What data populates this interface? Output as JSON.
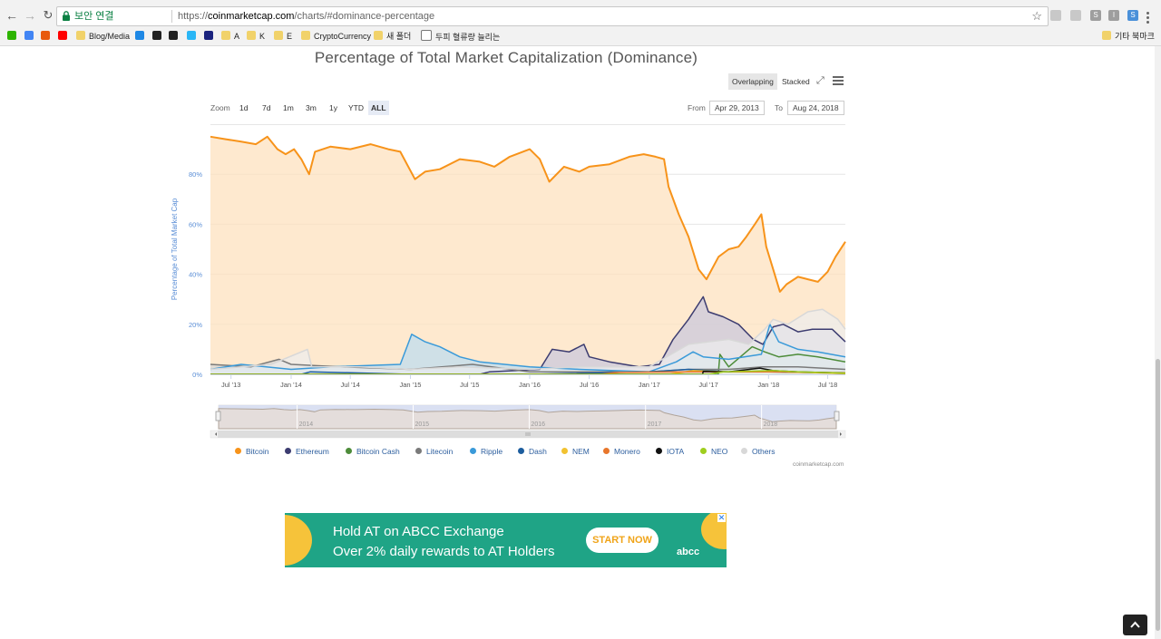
{
  "browser": {
    "secure_label": "보안 연결",
    "url_scheme": "https://",
    "url_host": "coinmarketcap.com",
    "url_path": "/charts/#dominance-percentage",
    "bookmarks": [
      {
        "label": "",
        "icon": "green-n-icon",
        "color": "#2db400"
      },
      {
        "label": "",
        "icon": "google-icon",
        "color": "#4285f4"
      },
      {
        "label": "",
        "icon": "orange-t-icon",
        "color": "#e8590c"
      },
      {
        "label": "",
        "icon": "youtube-icon",
        "color": "#ff0000"
      },
      {
        "label": "Blog/Media",
        "icon": "folder-icon",
        "color": "#f1d26a"
      },
      {
        "label": "",
        "icon": "site-icon",
        "color": "#1e88e5"
      },
      {
        "label": "",
        "icon": "lock-site-icon",
        "color": "#222222"
      },
      {
        "label": "",
        "icon": "swirl-icon",
        "color": "#222222"
      },
      {
        "label": "",
        "icon": "cloud-icon",
        "color": "#29b6f6"
      },
      {
        "label": "",
        "icon": "dark-circle-icon",
        "color": "#1a237e"
      },
      {
        "label": "A",
        "icon": "folder-icon",
        "color": "#f1d26a"
      },
      {
        "label": "K",
        "icon": "folder-icon",
        "color": "#f1d26a"
      },
      {
        "label": "E",
        "icon": "folder-icon",
        "color": "#f1d26a"
      },
      {
        "label": "CryptoCurrency",
        "icon": "folder-icon",
        "color": "#f1d26a"
      },
      {
        "label": "새 폴더",
        "icon": "folder-icon",
        "color": "#f1d26a"
      },
      {
        "label": "두피 혈류량 늘리는",
        "icon": "page-icon",
        "color": "#ffffff"
      }
    ],
    "other_bookmarks": "기타 북마크"
  },
  "chart": {
    "title": "Percentage of Total Market Capitalization (Dominance)",
    "modes": [
      "Overlapping",
      "Stacked"
    ],
    "active_mode": "Overlapping",
    "zoom_label": "Zoom",
    "zoom_buttons": [
      "1d",
      "7d",
      "1m",
      "3m",
      "1y",
      "YTD",
      "ALL"
    ],
    "active_zoom": "ALL",
    "from_label": "From",
    "from_value": "Apr 29, 2013",
    "to_label": "To",
    "to_value": "Aug 24, 2018",
    "credits": "coinmarketcap.com"
  },
  "chart_data": {
    "type": "area",
    "title": "Percentage of Total Market Capitalization (Dominance)",
    "ylabel": "Percentage of Total Market Cap",
    "xlabel": "",
    "ylim": [
      0,
      100
    ],
    "y_ticks": [
      "0%",
      "20%",
      "40%",
      "60%",
      "80%"
    ],
    "y_tick_values": [
      0,
      20,
      40,
      60,
      80
    ],
    "x_ticks": [
      "Jul '13",
      "Jan '14",
      "Jul '14",
      "Jan '15",
      "Jul '15",
      "Jan '16",
      "Jul '16",
      "Jan '17",
      "Jul '17",
      "Jan '18",
      "Jul '18"
    ],
    "x_tick_dates": [
      "2013-07-01",
      "2014-01-01",
      "2014-07-01",
      "2015-01-01",
      "2015-07-01",
      "2016-01-01",
      "2016-07-01",
      "2017-01-01",
      "2017-07-01",
      "2018-01-01",
      "2018-07-01"
    ],
    "x_range": [
      "2013-04-29",
      "2018-08-24"
    ],
    "navigator_labels": [
      "2014",
      "2015",
      "2016",
      "2017",
      "2018"
    ],
    "legend_placement": "bottom",
    "grid": true,
    "series": [
      {
        "name": "Bitcoin",
        "color": "#f7931a",
        "fill": "#fde0bd",
        "points": [
          [
            "2013-04-29",
            95
          ],
          [
            "2013-06-15",
            94
          ],
          [
            "2013-08-01",
            93
          ],
          [
            "2013-09-15",
            92
          ],
          [
            "2013-10-20",
            95
          ],
          [
            "2013-11-20",
            90
          ],
          [
            "2013-12-15",
            88
          ],
          [
            "2014-01-10",
            90
          ],
          [
            "2014-02-01",
            86
          ],
          [
            "2014-02-25",
            80
          ],
          [
            "2014-03-15",
            89
          ],
          [
            "2014-05-01",
            91
          ],
          [
            "2014-07-01",
            90
          ],
          [
            "2014-09-01",
            92
          ],
          [
            "2014-10-25",
            90
          ],
          [
            "2014-12-01",
            89
          ],
          [
            "2015-01-15",
            78
          ],
          [
            "2015-02-15",
            81
          ],
          [
            "2015-04-01",
            82
          ],
          [
            "2015-06-01",
            86
          ],
          [
            "2015-08-01",
            85
          ],
          [
            "2015-09-15",
            83
          ],
          [
            "2015-11-01",
            87
          ],
          [
            "2016-01-01",
            90
          ],
          [
            "2016-02-01",
            86
          ],
          [
            "2016-03-01",
            77
          ],
          [
            "2016-04-15",
            83
          ],
          [
            "2016-06-01",
            81
          ],
          [
            "2016-07-01",
            83
          ],
          [
            "2016-09-01",
            84
          ],
          [
            "2016-11-01",
            87
          ],
          [
            "2016-12-15",
            88
          ],
          [
            "2017-01-20",
            87
          ],
          [
            "2017-02-15",
            86
          ],
          [
            "2017-03-01",
            75
          ],
          [
            "2017-04-01",
            64
          ],
          [
            "2017-05-01",
            55
          ],
          [
            "2017-06-01",
            42
          ],
          [
            "2017-06-25",
            38
          ],
          [
            "2017-08-01",
            47
          ],
          [
            "2017-09-01",
            50
          ],
          [
            "2017-10-01",
            51
          ],
          [
            "2017-10-25",
            55
          ],
          [
            "2017-11-20",
            60
          ],
          [
            "2017-12-10",
            64
          ],
          [
            "2017-12-25",
            51
          ],
          [
            "2018-01-15",
            42
          ],
          [
            "2018-02-05",
            33
          ],
          [
            "2018-02-25",
            36
          ],
          [
            "2018-04-01",
            39
          ],
          [
            "2018-05-01",
            38
          ],
          [
            "2018-06-01",
            37
          ],
          [
            "2018-07-01",
            41
          ],
          [
            "2018-07-25",
            47
          ],
          [
            "2018-08-24",
            53
          ]
        ]
      },
      {
        "name": "Ethereum",
        "color": "#3c3c70",
        "fill": "#c9c8dc",
        "points": [
          [
            "2013-04-29",
            0
          ],
          [
            "2015-08-01",
            0
          ],
          [
            "2015-09-01",
            1
          ],
          [
            "2016-02-01",
            2
          ],
          [
            "2016-03-10",
            10
          ],
          [
            "2016-05-01",
            9
          ],
          [
            "2016-06-15",
            12
          ],
          [
            "2016-07-01",
            7
          ],
          [
            "2016-09-01",
            5
          ],
          [
            "2016-12-01",
            3
          ],
          [
            "2017-02-01",
            4
          ],
          [
            "2017-03-15",
            14
          ],
          [
            "2017-05-01",
            22
          ],
          [
            "2017-06-15",
            31
          ],
          [
            "2017-07-01",
            25
          ],
          [
            "2017-08-15",
            23
          ],
          [
            "2017-10-01",
            20
          ],
          [
            "2017-11-15",
            14
          ],
          [
            "2017-12-15",
            12
          ],
          [
            "2018-01-15",
            19
          ],
          [
            "2018-02-15",
            20
          ],
          [
            "2018-04-01",
            17
          ],
          [
            "2018-05-15",
            18
          ],
          [
            "2018-07-15",
            18
          ],
          [
            "2018-08-24",
            13
          ]
        ]
      },
      {
        "name": "Bitcoin Cash",
        "color": "#4d8c3a",
        "fill": "#c7dcc0",
        "points": [
          [
            "2013-04-29",
            0
          ],
          [
            "2017-07-31",
            0
          ],
          [
            "2017-08-05",
            8
          ],
          [
            "2017-09-01",
            3
          ],
          [
            "2017-11-12",
            11
          ],
          [
            "2017-12-20",
            9
          ],
          [
            "2018-02-01",
            7
          ],
          [
            "2018-04-01",
            8
          ],
          [
            "2018-06-01",
            7
          ],
          [
            "2018-08-24",
            5
          ]
        ]
      },
      {
        "name": "Litecoin",
        "color": "#7a7a7a",
        "fill": "#d5d5d5",
        "points": [
          [
            "2013-04-29",
            4
          ],
          [
            "2013-09-01",
            3
          ],
          [
            "2013-11-25",
            6
          ],
          [
            "2014-01-01",
            4
          ],
          [
            "2014-06-01",
            3
          ],
          [
            "2015-01-01",
            2
          ],
          [
            "2015-07-10",
            4
          ],
          [
            "2016-01-01",
            1
          ],
          [
            "2017-01-01",
            1
          ],
          [
            "2017-05-01",
            2
          ],
          [
            "2017-09-01",
            2
          ],
          [
            "2017-12-15",
            3
          ],
          [
            "2018-04-01",
            3
          ],
          [
            "2018-08-24",
            2
          ]
        ]
      },
      {
        "name": "Ripple",
        "color": "#3a9ad9",
        "fill": "#bcdcf0",
        "points": [
          [
            "2013-04-29",
            2
          ],
          [
            "2013-08-01",
            4
          ],
          [
            "2014-01-01",
            2
          ],
          [
            "2014-05-01",
            3
          ],
          [
            "2014-12-01",
            4
          ],
          [
            "2015-01-05",
            16
          ],
          [
            "2015-02-15",
            13
          ],
          [
            "2015-04-01",
            11
          ],
          [
            "2015-06-01",
            7
          ],
          [
            "2015-08-01",
            5
          ],
          [
            "2016-01-01",
            3
          ],
          [
            "2016-06-01",
            2
          ],
          [
            "2017-01-01",
            1
          ],
          [
            "2017-03-25",
            5
          ],
          [
            "2017-05-15",
            9
          ],
          [
            "2017-06-15",
            7
          ],
          [
            "2017-09-01",
            6
          ],
          [
            "2017-12-10",
            8
          ],
          [
            "2018-01-05",
            20
          ],
          [
            "2018-02-01",
            13
          ],
          [
            "2018-04-01",
            10
          ],
          [
            "2018-06-01",
            9
          ],
          [
            "2018-08-24",
            7
          ]
        ]
      },
      {
        "name": "Dash",
        "color": "#1c5d9e",
        "fill": "#b3c9e0",
        "points": [
          [
            "2013-04-29",
            0
          ],
          [
            "2014-02-01",
            0
          ],
          [
            "2014-03-01",
            1
          ],
          [
            "2015-01-01",
            0
          ],
          [
            "2016-01-01",
            0
          ],
          [
            "2017-01-01",
            1
          ],
          [
            "2017-05-01",
            2
          ],
          [
            "2017-09-01",
            1
          ],
          [
            "2018-01-01",
            1
          ],
          [
            "2018-08-24",
            0.5
          ]
        ]
      },
      {
        "name": "NEM",
        "color": "#f2c230",
        "fill": "#f9e8b4",
        "points": [
          [
            "2013-04-29",
            0
          ],
          [
            "2017-03-01",
            0
          ],
          [
            "2017-05-15",
            1.5
          ],
          [
            "2017-09-01",
            1
          ],
          [
            "2018-01-01",
            1.2
          ],
          [
            "2018-08-24",
            0.3
          ]
        ]
      },
      {
        "name": "Monero",
        "color": "#e8762b",
        "fill": "#f5d3bc",
        "points": [
          [
            "2013-04-29",
            0
          ],
          [
            "2016-08-01",
            0
          ],
          [
            "2016-10-01",
            0.8
          ],
          [
            "2017-06-01",
            1
          ],
          [
            "2018-01-01",
            1
          ],
          [
            "2018-08-24",
            0.6
          ]
        ]
      },
      {
        "name": "IOTA",
        "color": "#111111",
        "fill": "#bbbbbb",
        "points": [
          [
            "2013-04-29",
            0
          ],
          [
            "2017-06-13",
            0
          ],
          [
            "2017-06-15",
            1.2
          ],
          [
            "2017-09-01",
            1
          ],
          [
            "2017-12-05",
            2.5
          ],
          [
            "2018-01-15",
            1.5
          ],
          [
            "2018-04-01",
            1
          ],
          [
            "2018-08-24",
            0.5
          ]
        ]
      },
      {
        "name": "NEO",
        "color": "#9fce1e",
        "fill": "#e0f0b8",
        "points": [
          [
            "2013-04-29",
            0
          ],
          [
            "2017-07-01",
            0
          ],
          [
            "2017-08-15",
            1
          ],
          [
            "2018-01-15",
            1.5
          ],
          [
            "2018-04-01",
            1
          ],
          [
            "2018-08-24",
            0.5
          ]
        ]
      },
      {
        "name": "Others",
        "color": "#d8d8d8",
        "fill": "#ededed",
        "points": [
          [
            "2013-04-29",
            2
          ],
          [
            "2013-11-01",
            4
          ],
          [
            "2014-02-20",
            10
          ],
          [
            "2014-03-05",
            3
          ],
          [
            "2014-08-01",
            3
          ],
          [
            "2015-01-01",
            2
          ],
          [
            "2015-06-01",
            3
          ],
          [
            "2016-01-01",
            2
          ],
          [
            "2016-06-01",
            3
          ],
          [
            "2017-01-01",
            3
          ],
          [
            "2017-05-01",
            12
          ],
          [
            "2017-07-01",
            13
          ],
          [
            "2017-09-01",
            14
          ],
          [
            "2017-11-01",
            12
          ],
          [
            "2017-12-20",
            18
          ],
          [
            "2018-01-15",
            22
          ],
          [
            "2018-03-01",
            20
          ],
          [
            "2018-05-01",
            25
          ],
          [
            "2018-06-15",
            26
          ],
          [
            "2018-08-01",
            22
          ],
          [
            "2018-08-24",
            18
          ]
        ]
      }
    ]
  },
  "ad": {
    "line1": "Hold AT on ABCC Exchange",
    "line2": "Over 2% daily rewards to AT Holders",
    "cta": "START NOW",
    "brand": "abcc",
    "close": "✕"
  }
}
